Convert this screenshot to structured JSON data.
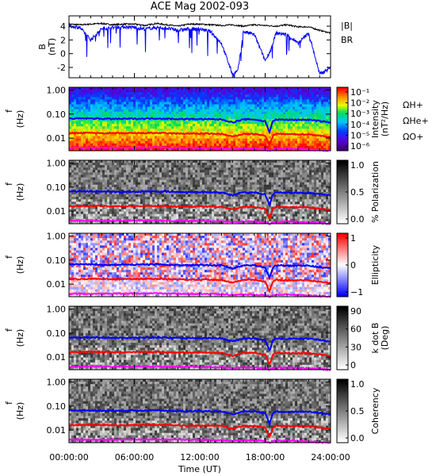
{
  "figure": {
    "title": "ACE Mag 2002-093",
    "xlabel": "Time (UT)",
    "xticks": [
      "00:00:00",
      "06:00:00",
      "12:00:00",
      "18:00:00",
      "24:00:00"
    ]
  },
  "chart_data": [
    {
      "type": "line",
      "ylabel": "B",
      "yunit": "(nT)",
      "ylim": [
        -3.5,
        5.5
      ],
      "yticks": [
        "4",
        "2",
        "0",
        "-2"
      ],
      "xlim_hours": [
        0,
        24
      ],
      "series": [
        {
          "name": "|B|",
          "color": "#000000",
          "x_hours": [
            0,
            1,
            2,
            3,
            4,
            5,
            6,
            7,
            8,
            9,
            10,
            11,
            12,
            13,
            14,
            15,
            16,
            17,
            18,
            19,
            20,
            21,
            22,
            23,
            24
          ],
          "values": [
            4.3,
            4.2,
            4.3,
            4.4,
            4.2,
            4.3,
            4.3,
            4.1,
            4.4,
            4.2,
            4.0,
            4.3,
            4.3,
            4.2,
            4.1,
            4.2,
            4.0,
            4.2,
            4.1,
            4.0,
            4.2,
            3.9,
            3.9,
            3.4,
            3.0
          ]
        },
        {
          "name": "BR",
          "color": "#0000ff",
          "x_hours": [
            0,
            1,
            2,
            3,
            4,
            5,
            6,
            7,
            8,
            9,
            10,
            11,
            12,
            13,
            14,
            15,
            15.5,
            16,
            17,
            18,
            18.5,
            19,
            20,
            21,
            22,
            23,
            24
          ],
          "values": [
            4.0,
            3.8,
            2.0,
            3.6,
            3.8,
            3.9,
            3.8,
            3.6,
            3.8,
            3.7,
            3.4,
            3.6,
            3.6,
            3.2,
            1.5,
            -3.0,
            -2.5,
            3.2,
            2.8,
            -1.0,
            0.5,
            3.0,
            2.8,
            1.5,
            3.0,
            -3.0,
            -2.0
          ]
        }
      ],
      "legend": [
        "|B|",
        "BR"
      ]
    },
    {
      "type": "heatmap",
      "ylabel": "f",
      "yunit": "(Hz)",
      "yscale": "log",
      "ylim": [
        0.003,
        1.3
      ],
      "yticks": [
        "1.00",
        "0.10",
        "0.01"
      ],
      "colorbar": {
        "label": "Intensity",
        "unit": "(nT²/Hz)",
        "scale": "log",
        "ticks": [
          "10⁻¹",
          "10⁻²",
          "10⁻³",
          "10⁻⁴",
          "10⁻⁵",
          "10⁻⁶"
        ]
      },
      "legend": [
        "ΩH+",
        "ΩHe+",
        "ΩO+"
      ],
      "palette": "rainbow"
    },
    {
      "type": "heatmap",
      "ylabel": "f",
      "yunit": "(Hz)",
      "yscale": "log",
      "ylim": [
        0.003,
        1.3
      ],
      "yticks": [
        "1.00",
        "0.10",
        "0.01"
      ],
      "colorbar": {
        "label": "% Polarization",
        "unit": "",
        "scale": "linear",
        "ticks": [
          "1.0",
          "0.5",
          "0.0"
        ]
      },
      "palette": "gray"
    },
    {
      "type": "heatmap",
      "ylabel": "f",
      "yunit": "(Hz)",
      "yscale": "log",
      "ylim": [
        0.003,
        1.3
      ],
      "yticks": [
        "1.00",
        "0.10",
        "0.01"
      ],
      "colorbar": {
        "label": "Ellipticity",
        "unit": "",
        "scale": "linear",
        "ticks": [
          "1",
          "0",
          "−1"
        ]
      },
      "palette": "bwr"
    },
    {
      "type": "heatmap",
      "ylabel": "f",
      "yunit": "(Hz)",
      "yscale": "log",
      "ylim": [
        0.003,
        1.3
      ],
      "yticks": [
        "1.00",
        "0.10",
        "0.01"
      ],
      "colorbar": {
        "label": "k dot B",
        "unit": "(Deg)",
        "scale": "linear",
        "ticks": [
          "90",
          "60",
          "30",
          "0"
        ]
      },
      "palette": "gray"
    },
    {
      "type": "heatmap",
      "ylabel": "f",
      "yunit": "(Hz)",
      "yscale": "log",
      "ylim": [
        0.003,
        1.3
      ],
      "yticks": [
        "1.00",
        "0.10",
        "0.01"
      ],
      "colorbar": {
        "label": "Coherency",
        "unit": "",
        "scale": "linear",
        "ticks": [
          "1.0",
          "0.5",
          "0.0"
        ]
      },
      "palette": "gray"
    }
  ],
  "gyrofrequency_lines": [
    {
      "name": "ΩH+",
      "color": "#0000ff",
      "x_hours": [
        0,
        2,
        4,
        6,
        8,
        10,
        12,
        14,
        15,
        16,
        17,
        18,
        18.4,
        18.7,
        19,
        20,
        22,
        24
      ],
      "f_hz": [
        0.065,
        0.066,
        0.063,
        0.064,
        0.066,
        0.062,
        0.062,
        0.06,
        0.045,
        0.06,
        0.06,
        0.05,
        0.018,
        0.05,
        0.06,
        0.058,
        0.058,
        0.045
      ]
    },
    {
      "name": "ΩHe+",
      "color": "#ff0000",
      "x_hours": [
        0,
        2,
        4,
        6,
        8,
        10,
        12,
        14,
        15,
        16,
        17,
        18,
        18.4,
        18.7,
        19,
        20,
        22,
        24
      ],
      "f_hz": [
        0.016,
        0.0165,
        0.016,
        0.016,
        0.0165,
        0.0155,
        0.0155,
        0.015,
        0.0115,
        0.015,
        0.015,
        0.0125,
        0.005,
        0.0125,
        0.015,
        0.0145,
        0.0145,
        0.011
      ]
    },
    {
      "name": "ΩO+",
      "color": "#ff00ff",
      "x_hours": [
        0,
        4,
        8,
        12,
        14,
        15,
        16,
        18,
        18.4,
        18.7,
        20,
        24
      ],
      "f_hz": [
        0.004,
        0.004,
        0.0041,
        0.0039,
        0.0038,
        0.0035,
        0.0038,
        0.0035,
        0.003,
        0.0035,
        0.0037,
        0.003
      ]
    }
  ]
}
